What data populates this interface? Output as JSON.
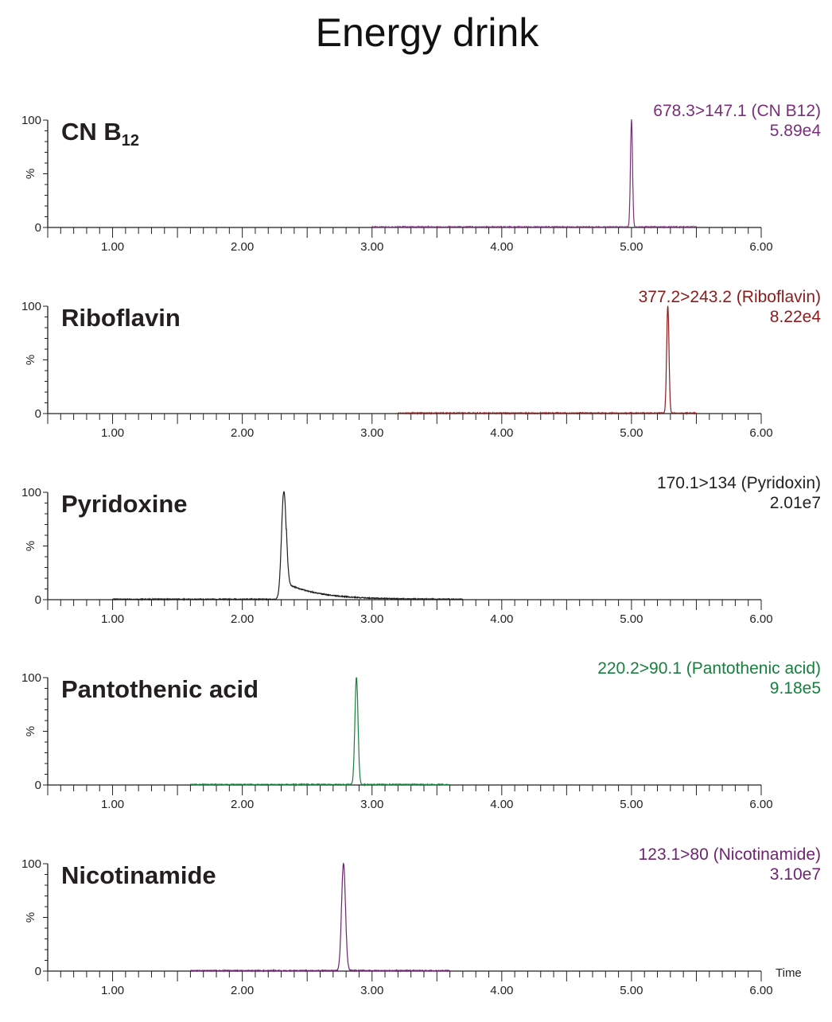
{
  "chart_data": {
    "type": "line",
    "title": "Energy drink",
    "xlabel": "Time",
    "ylabel": "%",
    "xlim": [
      0.5,
      6.0
    ],
    "ylim": [
      0,
      100
    ],
    "x_ticks": [
      "1.00",
      "2.00",
      "3.00",
      "4.00",
      "5.00",
      "6.00"
    ],
    "y_ticks": [
      "0",
      "100"
    ],
    "panels": [
      {
        "compound": "CN B",
        "subscript": "12",
        "transition": "678.3>147.1 (CN B12)",
        "intensity": "5.89e4",
        "color": "#7a2e7a",
        "trace_range": [
          3.0,
          5.5
        ],
        "peak_rt": 5.0,
        "peak_width": 0.008,
        "tail": 0.01,
        "tail_level": 0.0
      },
      {
        "compound": "Riboflavin",
        "subscript": "",
        "transition": "377.2>243.2 (Riboflavin)",
        "intensity": "8.22e4",
        "color": "#8b1c1c",
        "trace_range": [
          3.2,
          5.5
        ],
        "peak_rt": 5.28,
        "peak_width": 0.009,
        "tail": 0.01,
        "tail_level": 0.0
      },
      {
        "compound": "Pyridoxine",
        "subscript": "",
        "transition": "170.1>134 (Pyridoxin)",
        "intensity": "2.01e7",
        "color": "#231f20",
        "trace_range": [
          1.0,
          3.7
        ],
        "peak_rt": 2.32,
        "peak_width": 0.018,
        "tail": 0.25,
        "tail_level": 0.08
      },
      {
        "compound": "Pantothenic acid",
        "subscript": "",
        "transition": "220.2>90.1 (Pantothenic acid)",
        "intensity": "9.18e5",
        "color": "#16803c",
        "trace_range": [
          1.6,
          3.6
        ],
        "peak_rt": 2.88,
        "peak_width": 0.012,
        "tail": 0.02,
        "tail_level": 0.0
      },
      {
        "compound": "Nicotinamide",
        "subscript": "",
        "transition": "123.1>80 (Nicotinamide)",
        "intensity": "3.10e7",
        "color": "#6e2470",
        "trace_range": [
          1.6,
          3.6
        ],
        "peak_rt": 2.78,
        "peak_width": 0.015,
        "tail": 0.03,
        "tail_level": 0.01
      }
    ]
  }
}
